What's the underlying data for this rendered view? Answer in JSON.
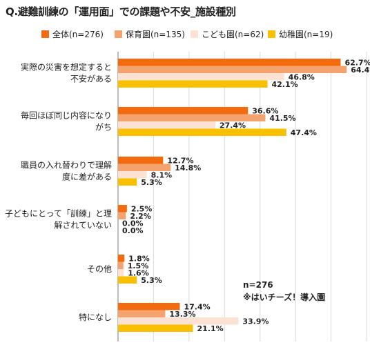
{
  "title": "Q.避難訓練の「運用面」での課題や不安_施設種別",
  "note": {
    "n": "n=276",
    "caption": "※はいチーズ！導入園"
  },
  "chart_data": {
    "type": "bar",
    "orientation": "horizontal",
    "title": "Q.避難訓練の「運用面」での課題や不安_施設種別",
    "legend_position": "top",
    "xlim": [
      0,
      70
    ],
    "grid": true,
    "categories": [
      [
        "実際の災害を想定すると",
        "不安がある"
      ],
      [
        "毎回ほぼ同じ内容になり",
        "がち"
      ],
      [
        "職員の入れ替わりで理解",
        "度に差がある"
      ],
      [
        "子どもにとって「訓練」と理",
        "解されていない"
      ],
      [
        "その他"
      ],
      [
        "特になし"
      ]
    ],
    "series": [
      {
        "name": "全体(n=276)",
        "color": "#F26B0F",
        "values": [
          62.7,
          36.6,
          12.7,
          2.5,
          1.8,
          17.4
        ]
      },
      {
        "name": "保育園(n=135)",
        "color": "#F5A36E",
        "values": [
          64.4,
          41.5,
          14.8,
          2.2,
          1.5,
          13.3
        ]
      },
      {
        "name": "こども園(n=62)",
        "color": "#FBE2D3",
        "values": [
          46.8,
          27.4,
          8.1,
          0.0,
          1.6,
          33.9
        ]
      },
      {
        "name": "幼稚園(n=19)",
        "color": "#F8C000",
        "values": [
          42.1,
          47.4,
          5.3,
          0.0,
          5.3,
          21.1
        ]
      }
    ]
  }
}
